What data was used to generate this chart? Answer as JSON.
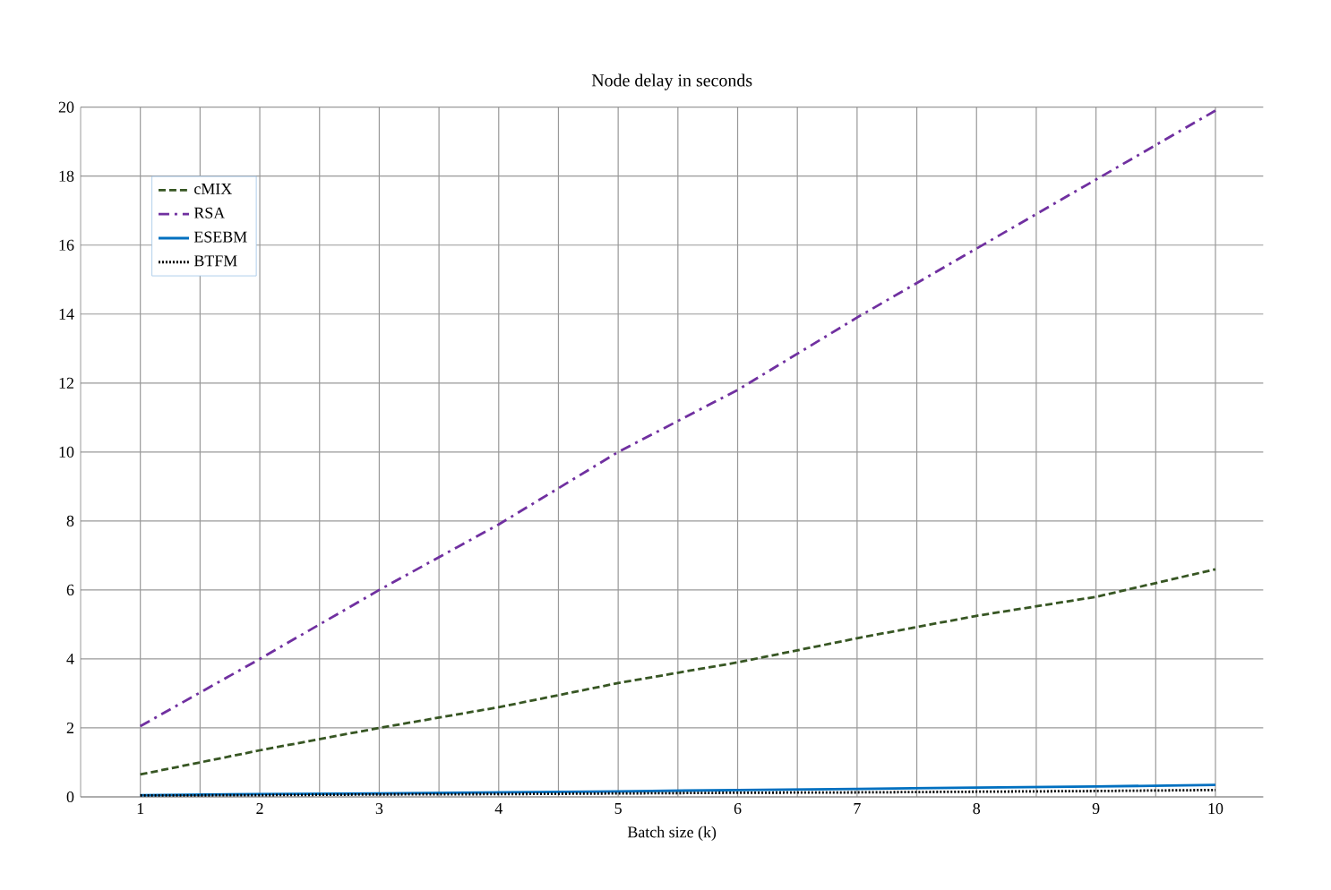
{
  "chart_data": {
    "type": "line",
    "title": "Node delay in seconds",
    "xlabel": "Batch size (k)",
    "x": [
      1,
      2,
      3,
      4,
      5,
      6,
      7,
      8,
      9,
      10
    ],
    "xlim": [
      0.5,
      10.4
    ],
    "xticks": [
      1,
      2,
      3,
      4,
      5,
      6,
      7,
      8,
      9,
      10
    ],
    "ylim": [
      0,
      20
    ],
    "yticks": [
      0,
      2,
      4,
      6,
      8,
      10,
      12,
      14,
      16,
      18,
      20
    ],
    "grid": true,
    "legend": "top left",
    "marker": "none",
    "series": [
      {
        "name": "cMIX",
        "color": "#375623",
        "line_style": "dashed",
        "values": [
          0.65,
          1.35,
          2.0,
          2.6,
          3.3,
          3.9,
          4.6,
          5.25,
          5.8,
          6.6
        ]
      },
      {
        "name": "RSA",
        "color": "#7030a0",
        "line_style": "dashdot",
        "values": [
          2.05,
          4.0,
          6.0,
          7.9,
          10.0,
          11.8,
          13.9,
          15.9,
          17.9,
          19.9
        ]
      },
      {
        "name": "ESEBM",
        "color": "#0070c0",
        "line_style": "solid",
        "values": [
          0.05,
          0.08,
          0.1,
          0.13,
          0.16,
          0.2,
          0.23,
          0.27,
          0.3,
          0.35
        ]
      },
      {
        "name": "BTFM",
        "color": "#000000",
        "line_style": "dotted",
        "values": [
          0.04,
          0.05,
          0.07,
          0.08,
          0.1,
          0.12,
          0.13,
          0.15,
          0.17,
          0.2
        ]
      }
    ]
  }
}
